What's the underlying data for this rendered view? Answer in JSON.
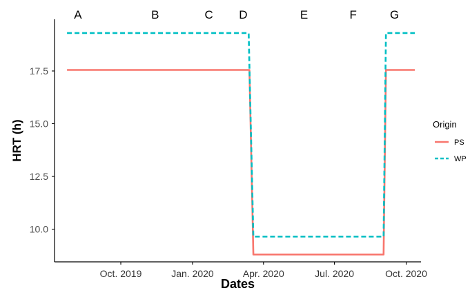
{
  "chart_data": {
    "type": "line",
    "xlabel": "Dates",
    "ylabel": "HRT (h)",
    "ylim": [
      8.45,
      19.95
    ],
    "xlim": [
      "2019-07-08",
      "2020-10-20"
    ],
    "x_ticks": [
      {
        "date": "2019-10-01",
        "label": "Oct. 2019"
      },
      {
        "date": "2020-01-01",
        "label": "Jan. 2020"
      },
      {
        "date": "2020-04-01",
        "label": "Apr. 2020"
      },
      {
        "date": "2020-07-01",
        "label": "Jul. 2020"
      },
      {
        "date": "2020-10-01",
        "label": "Oct. 2020"
      }
    ],
    "y_ticks": [
      10.0,
      12.5,
      15.0,
      17.5
    ],
    "y_tick_labels": [
      "10.0",
      "12.5",
      "15.0",
      "17.5"
    ],
    "period_labels": [
      {
        "label": "A",
        "date": "2019-08-07"
      },
      {
        "label": "B",
        "date": "2019-11-14"
      },
      {
        "label": "C",
        "date": "2020-01-22"
      },
      {
        "label": "D",
        "date": "2020-03-06"
      },
      {
        "label": "E",
        "date": "2020-05-23"
      },
      {
        "label": "F",
        "date": "2020-07-25"
      },
      {
        "label": "G",
        "date": "2020-09-16"
      }
    ],
    "grid": false,
    "legend": {
      "title": "Origin",
      "position": "right"
    },
    "series": [
      {
        "name": "PS",
        "color": "#F8766D",
        "dash": "solid",
        "x": [
          "2019-07-24",
          "2020-03-14",
          "2020-03-19",
          "2020-09-02",
          "2020-09-05",
          "2020-10-12"
        ],
        "y": [
          17.55,
          17.55,
          8.8,
          8.8,
          17.55,
          17.55
        ]
      },
      {
        "name": "WP",
        "color": "#00BFC4",
        "dash": "dashed",
        "x": [
          "2019-07-24",
          "2020-03-13",
          "2020-03-19",
          "2020-09-02",
          "2020-09-05",
          "2020-10-12"
        ],
        "y": [
          19.3,
          19.3,
          9.65,
          9.65,
          19.3,
          19.3
        ]
      }
    ]
  }
}
